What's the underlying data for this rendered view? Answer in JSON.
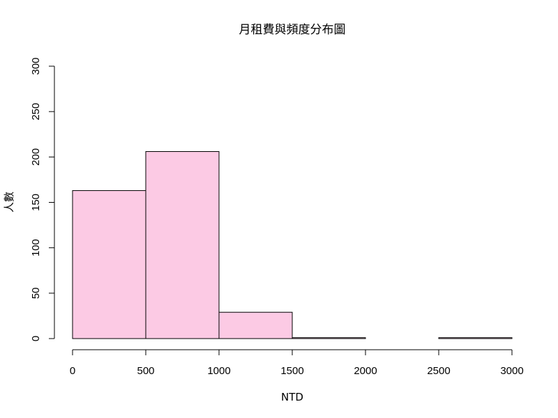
{
  "chart_data": {
    "type": "bar",
    "title": "月租費與頻度分布圖",
    "xlabel": "NTD",
    "ylabel": "人數",
    "bins": [
      {
        "start": 0,
        "end": 500,
        "count": 163
      },
      {
        "start": 500,
        "end": 1000,
        "count": 206
      },
      {
        "start": 1000,
        "end": 1500,
        "count": 29
      },
      {
        "start": 1500,
        "end": 2000,
        "count": 1
      },
      {
        "start": 2000,
        "end": 2500,
        "count": 0
      },
      {
        "start": 2500,
        "end": 3000,
        "count": 1
      }
    ],
    "xlim": [
      0,
      3000
    ],
    "ylim": [
      0,
      300
    ],
    "xticks": [
      "0",
      "500",
      "1000",
      "1500",
      "2000",
      "2500",
      "3000"
    ],
    "yticks": [
      "0",
      "50",
      "100",
      "150",
      "200",
      "250",
      "300"
    ],
    "grid": false,
    "bar_color": "#FCCAE4",
    "edge_color": "#000000"
  }
}
